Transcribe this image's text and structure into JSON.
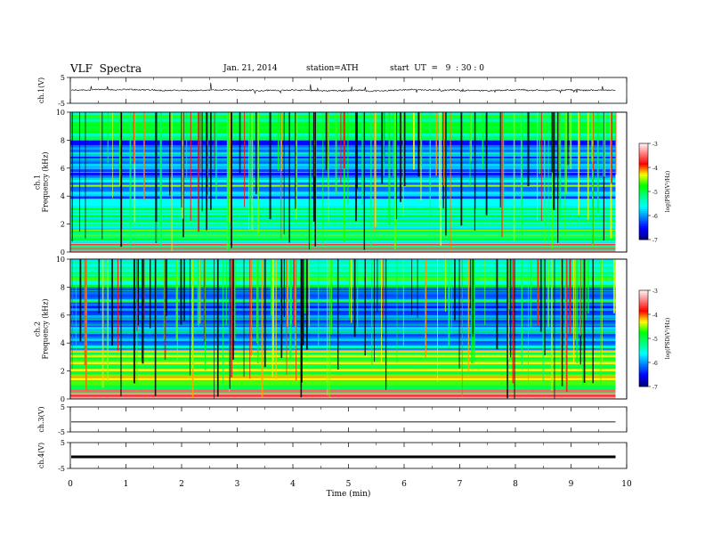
{
  "header": {
    "title": "VLF  Spectra",
    "date": "Jan. 21, 2014",
    "station": "station=ATH",
    "start": "start  UT  =   9  : 30 : 0"
  },
  "chart_data": [
    {
      "type": "line",
      "ylabel": "ch.1(V)",
      "ylim": [
        -5,
        5
      ],
      "yticks": [
        "5",
        "-5"
      ],
      "xlim": [
        0,
        10
      ],
      "series": [
        {
          "values_approx": "noisy trace near 0 V with sharp spikes to about ±2 V",
          "x_end": 9.8
        }
      ]
    },
    {
      "type": "heatmap",
      "ylabel": "ch.1\nFrequency  (kHz)",
      "ylim": [
        0,
        10
      ],
      "yticks": [
        "0",
        "2",
        "4",
        "6",
        "8",
        "10"
      ],
      "xlim": [
        0,
        10
      ],
      "x_end": 9.8,
      "colorbar": {
        "label": "log(PSD(V²/Hz)",
        "range": [
          -7,
          -3
        ],
        "ticks": [
          "-3",
          "-4",
          "-5",
          "-6",
          "-7"
        ],
        "colors": [
          "#000080",
          "#0000ff",
          "#0080ff",
          "#00ffff",
          "#00ff80",
          "#00ff00",
          "#ffff00",
          "#ff0000",
          "#ff8080",
          "#ffffff"
        ]
      }
    },
    {
      "type": "heatmap",
      "ylabel": "ch.2\nFrequency  (kHz)",
      "ylim": [
        0,
        10
      ],
      "yticks": [
        "0",
        "2",
        "4",
        "6",
        "8",
        "10"
      ],
      "xlim": [
        0,
        10
      ],
      "x_end": 9.8,
      "colorbar": {
        "label": "log(PSD(V²/Hz)",
        "range": [
          -7,
          -3
        ],
        "ticks": [
          "-3",
          "-4",
          "-5",
          "-6",
          "-7"
        ]
      }
    },
    {
      "type": "line",
      "ylabel": "ch.3(V)",
      "ylim": [
        -5,
        5
      ],
      "yticks": [
        "5",
        "-5"
      ],
      "xlim": [
        0,
        10
      ],
      "series": [
        {
          "constant": -1.0,
          "x_end": 9.8
        }
      ]
    },
    {
      "type": "line",
      "ylabel": "ch.4(V)",
      "ylim": [
        -5,
        5
      ],
      "yticks": [
        "5",
        "-5"
      ],
      "xlim": [
        0,
        10
      ],
      "series": [
        {
          "constant": -0.5,
          "x_end": 9.8,
          "thick": true
        }
      ]
    }
  ],
  "xaxis": {
    "label": "Time  (min)",
    "ticks": [
      "0",
      "1",
      "2",
      "3",
      "4",
      "5",
      "6",
      "7",
      "8",
      "9",
      "10"
    ]
  }
}
